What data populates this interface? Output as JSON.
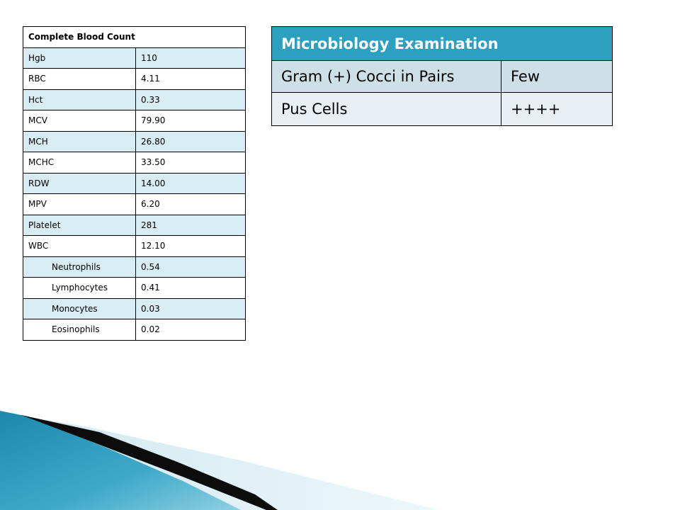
{
  "cbc": {
    "title": "Complete Blood Count",
    "rows": [
      {
        "label": "Hgb",
        "value": "110"
      },
      {
        "label": "RBC",
        "value": "4.11"
      },
      {
        "label": "Hct",
        "value": "0.33"
      },
      {
        "label": "MCV",
        "value": "79.90"
      },
      {
        "label": "MCH",
        "value": "26.80"
      },
      {
        "label": "MCHC",
        "value": "33.50"
      },
      {
        "label": "RDW",
        "value": "14.00"
      },
      {
        "label": "MPV",
        "value": "6.20"
      },
      {
        "label": "Platelet",
        "value": "281"
      },
      {
        "label": "WBC",
        "value": "12.10"
      },
      {
        "label": "Neutrophils",
        "value": "0.54"
      },
      {
        "label": "Lymphocytes",
        "value": "0.41"
      },
      {
        "label": "Monocytes",
        "value": "0.03"
      },
      {
        "label": "Eosinophils",
        "value": "0.02"
      }
    ]
  },
  "micro": {
    "title": "Microbiology Examination",
    "rows": [
      {
        "label": "Gram (+) Cocci in Pairs",
        "value": "Few"
      },
      {
        "label": "Pus Cells",
        "value": "++++"
      }
    ]
  },
  "colors": {
    "header_blue": "#2da0bf",
    "cbc_row_tint": "#d8ecf3",
    "deco_dark": "#0c0c0c"
  }
}
